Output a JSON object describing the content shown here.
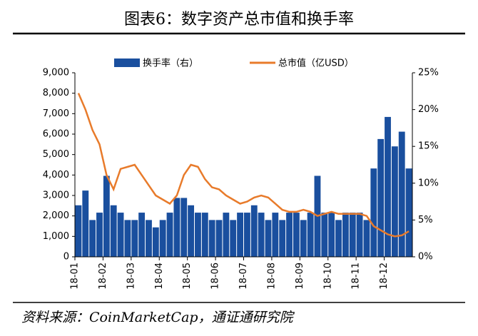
{
  "chart_data": {
    "type": "bar_line",
    "title": "图表6：数字资产总市值和换手率",
    "source": "资料来源：CoinMarketCap，通证通研究院",
    "categories": [
      "18-01",
      null,
      null,
      null,
      "18-02",
      null,
      null,
      null,
      "18-03",
      null,
      null,
      null,
      "18-04",
      null,
      null,
      null,
      "18-05",
      null,
      null,
      null,
      "18-06",
      null,
      null,
      null,
      "18-07",
      null,
      null,
      null,
      "18-08",
      null,
      null,
      null,
      "18-09",
      null,
      null,
      null,
      "18-10",
      null,
      null,
      null,
      "18-11",
      null,
      null,
      null,
      "18-12",
      null,
      null,
      null
    ],
    "series": [
      {
        "name": "换手率（右）",
        "color": "#1a4f9e",
        "axis": "y2",
        "kind": "bar",
        "values": [
          7,
          9,
          5,
          6,
          11,
          7,
          6,
          5,
          5,
          6,
          5,
          4,
          5,
          6,
          8,
          8,
          7,
          6,
          6,
          5,
          5,
          6,
          5,
          6,
          6,
          7,
          6,
          5,
          6,
          5,
          6,
          6,
          5,
          6,
          11,
          6,
          6,
          5,
          6,
          6,
          6,
          5,
          12,
          16,
          19,
          15,
          17,
          12
        ]
      },
      {
        "name": "总市值（亿USD）",
        "color": "#e87b2b",
        "axis": "y",
        "kind": "line",
        "values": [
          8000,
          7200,
          6200,
          5500,
          4000,
          3300,
          4300,
          4400,
          4500,
          4000,
          3500,
          3000,
          2800,
          2600,
          3000,
          4000,
          4500,
          4400,
          3800,
          3400,
          3300,
          3000,
          2800,
          2600,
          2700,
          2900,
          3000,
          2900,
          2600,
          2300,
          2200,
          2200,
          2300,
          2200,
          2000,
          2100,
          2200,
          2100,
          2100,
          2100,
          2100,
          2000,
          1500,
          1300,
          1100,
          1000,
          1050,
          1250
        ]
      }
    ],
    "ylim": [
      0,
      9000
    ],
    "yticks": [
      0,
      {
        "value": 1000,
        "label": "1,000"
      },
      {
        "value": 2000,
        "label": "2,000"
      },
      {
        "value": 3000,
        "label": "3,000"
      },
      {
        "value": 4000,
        "label": "4,000"
      },
      {
        "value": 5000,
        "label": "5,000"
      },
      {
        "value": 6000,
        "label": "6,000"
      },
      {
        "value": 7000,
        "label": "7,000"
      },
      {
        "value": 8000,
        "label": "8,000"
      },
      {
        "value": 9000,
        "label": "9,000"
      }
    ],
    "y2lim": [
      0,
      25
    ],
    "y2ticks": [
      {
        "value": 0,
        "label": "0%"
      },
      {
        "value": 5,
        "label": "5%"
      },
      {
        "value": 10,
        "label": "10%"
      },
      {
        "value": 15,
        "label": "15%"
      },
      {
        "value": 20,
        "label": "20%"
      },
      {
        "value": 25,
        "label": "25%"
      }
    ],
    "legend": "top"
  }
}
